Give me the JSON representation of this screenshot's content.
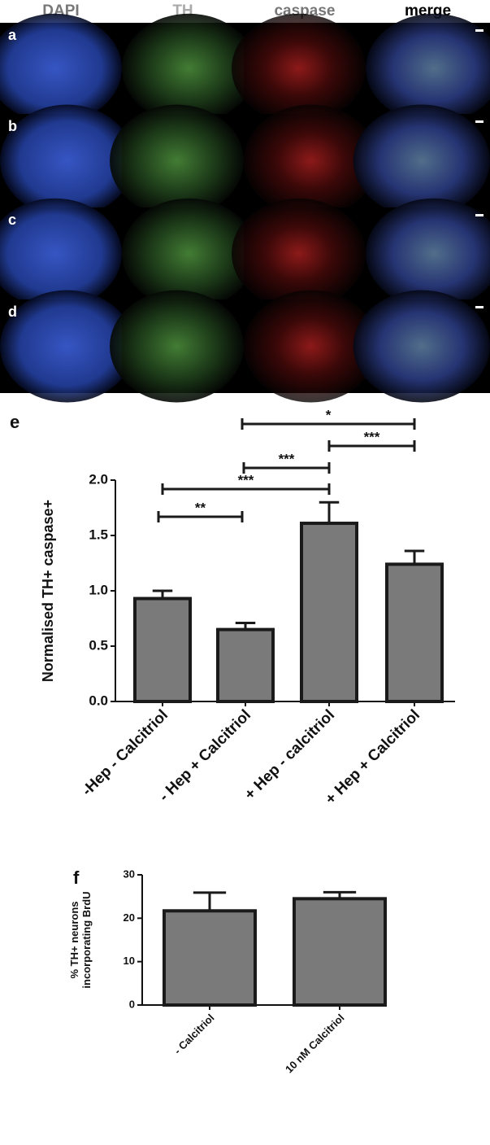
{
  "panels": {
    "column_headers": [
      "DAPI",
      "TH",
      "caspase",
      "merge"
    ],
    "row_labels": [
      "a",
      "b",
      "c",
      "d"
    ]
  },
  "chart_data": [
    {
      "type": "bar",
      "panel_label": "e",
      "ylabel": "Normalised TH+ caspase+",
      "categories": [
        "-Hep - Calcitriol",
        "- Hep + Calcitriol",
        "+ Hep - calcitriol",
        "+ Hep + Calcitriol"
      ],
      "values": [
        0.93,
        0.65,
        1.61,
        1.24
      ],
      "errors": [
        0.07,
        0.06,
        0.19,
        0.12
      ],
      "color": "#7a7a7a",
      "ylim": [
        0,
        2.0
      ],
      "yticks": [
        {
          "value": 0,
          "label": "0.0"
        },
        {
          "value": 0.5,
          "label": "0.5"
        },
        {
          "value": 1.0,
          "label": "1.0"
        },
        {
          "value": 1.5,
          "label": "1.5"
        },
        {
          "value": 2.0,
          "label": "2.0"
        }
      ],
      "significance": [
        "**",
        "***",
        "***",
        "*",
        "***"
      ]
    },
    {
      "type": "bar",
      "panel_label": "f",
      "ylabel": [
        "% TH+ neurons",
        "incorporating BrdU"
      ],
      "categories": [
        "- Calcitriol",
        "10 nM Calcitriol"
      ],
      "values": [
        21.7,
        24.5
      ],
      "errors": [
        4.2,
        1.5
      ],
      "color": "#7a7a7a",
      "ylim": [
        0,
        30
      ],
      "yticks": [
        0,
        10,
        20,
        30
      ]
    }
  ]
}
